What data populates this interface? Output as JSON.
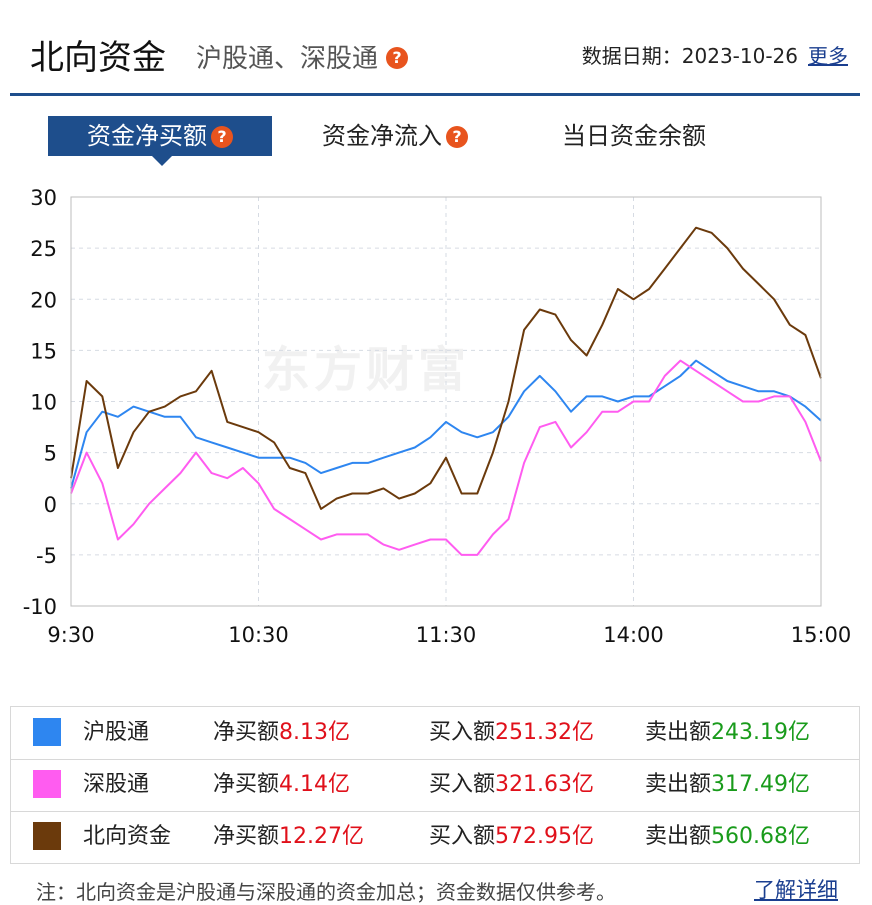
{
  "header": {
    "title": "北向资金",
    "subtitle": "沪股通、深股通",
    "help_glyph": "?",
    "date_label": "数据日期：",
    "date_value": "2023-10-26",
    "more_link": "更多"
  },
  "tabs": [
    {
      "label": "资金净买额",
      "active": true,
      "has_help": true
    },
    {
      "label": "资金净流入",
      "active": false,
      "has_help": true
    },
    {
      "label": "当日资金余额",
      "active": false,
      "has_help": false
    }
  ],
  "watermark": "东方财富",
  "chart_data": {
    "type": "line",
    "title": "",
    "xlabel": "",
    "ylabel": "",
    "ylim": [
      -10,
      30
    ],
    "yticks": [
      -10,
      -5,
      0,
      5,
      10,
      15,
      20,
      25,
      30
    ],
    "xticks": [
      "9:30",
      "10:30",
      "11:30",
      "14:00",
      "15:00"
    ],
    "x_minutes": [
      0,
      5,
      10,
      15,
      20,
      25,
      30,
      35,
      40,
      45,
      50,
      55,
      60,
      65,
      70,
      75,
      80,
      85,
      90,
      95,
      100,
      105,
      110,
      115,
      120,
      125,
      130,
      135,
      140,
      145,
      150,
      155,
      160,
      165,
      170,
      175,
      180,
      185,
      190,
      195,
      200,
      205,
      210,
      215,
      220,
      225,
      230,
      235,
      240
    ],
    "grid": true,
    "series": [
      {
        "name": "沪股通",
        "color": "#2e86f0",
        "values": [
          1.5,
          7.0,
          9.0,
          8.5,
          9.5,
          9.0,
          8.5,
          8.5,
          6.5,
          6.0,
          5.5,
          5.0,
          4.5,
          4.5,
          4.5,
          4.0,
          3.0,
          3.5,
          4.0,
          4.0,
          4.5,
          5.0,
          5.5,
          6.5,
          8.0,
          7.0,
          6.5,
          7.0,
          8.5,
          11.0,
          12.5,
          11.0,
          9.0,
          10.5,
          10.5,
          10.0,
          10.5,
          10.5,
          11.5,
          12.5,
          14.0,
          13.0,
          12.0,
          11.5,
          11.0,
          11.0,
          10.5,
          9.5,
          8.13
        ]
      },
      {
        "name": "深股通",
        "color": "#ff5cf0",
        "values": [
          1.0,
          5.0,
          2.0,
          -3.5,
          -2.0,
          0.0,
          1.5,
          3.0,
          5.0,
          3.0,
          2.5,
          3.5,
          2.0,
          -0.5,
          -1.5,
          -2.5,
          -3.5,
          -3.0,
          -3.0,
          -3.0,
          -4.0,
          -4.5,
          -4.0,
          -3.5,
          -3.5,
          -5.0,
          -5.0,
          -3.0,
          -1.5,
          4.0,
          7.5,
          8.0,
          5.5,
          7.0,
          9.0,
          9.0,
          10.0,
          10.0,
          12.5,
          14.0,
          13.0,
          12.0,
          11.0,
          10.0,
          10.0,
          10.5,
          10.5,
          8.0,
          4.14
        ]
      },
      {
        "name": "北向资金",
        "color": "#6b3a0c",
        "values": [
          2.5,
          12.0,
          10.5,
          3.5,
          7.0,
          9.0,
          9.5,
          10.5,
          11.0,
          13.0,
          8.0,
          7.5,
          7.0,
          6.0,
          3.5,
          3.0,
          -0.5,
          0.5,
          1.0,
          1.0,
          1.5,
          0.5,
          1.0,
          2.0,
          4.5,
          1.0,
          1.0,
          5.0,
          10.0,
          17.0,
          19.0,
          18.5,
          16.0,
          14.5,
          17.5,
          21.0,
          20.0,
          21.0,
          23.0,
          25.0,
          27.0,
          26.5,
          25.0,
          23.0,
          21.5,
          20.0,
          17.5,
          16.5,
          12.27
        ]
      }
    ]
  },
  "legend": {
    "rows": [
      {
        "name": "沪股通",
        "color": "#2e86f0",
        "net_label": "净买额",
        "net_value": "8.13亿",
        "buy_label": "买入额",
        "buy_value": "251.32亿",
        "sell_label": "卖出额",
        "sell_value": "243.19亿"
      },
      {
        "name": "深股通",
        "color": "#ff5cf0",
        "net_label": "净买额",
        "net_value": "4.14亿",
        "buy_label": "买入额",
        "buy_value": "321.63亿",
        "sell_label": "卖出额",
        "sell_value": "317.49亿"
      },
      {
        "name": "北向资金",
        "color": "#6b3a0c",
        "net_label": "净买额",
        "net_value": "12.27亿",
        "buy_label": "买入额",
        "buy_value": "572.95亿",
        "sell_label": "卖出额",
        "sell_value": "560.68亿"
      }
    ]
  },
  "footer": {
    "note": "注：北向资金是沪股通与深股通的资金加总；资金数据仅供参考。",
    "detail_link": "了解详细"
  }
}
